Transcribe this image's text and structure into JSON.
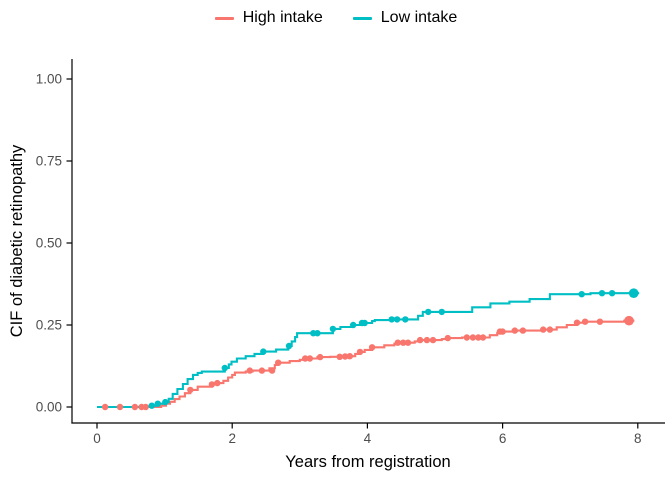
{
  "chart": {
    "background": "#ffffff",
    "axis_color": "#000000",
    "tick_label_color": "#4d4d4d"
  },
  "legend": {
    "items": [
      {
        "label": "High intake",
        "color": "#F8766D"
      },
      {
        "label": "Low intake",
        "color": "#00BFC4"
      }
    ]
  },
  "chart_data": {
    "type": "line",
    "subtype": "step-cumulative-incidence",
    "title": "",
    "xlabel": "Years from registration",
    "ylabel": "CIF of diabetic retinopathy",
    "xlim": [
      0,
      8.4
    ],
    "ylim": [
      0,
      1.04
    ],
    "grid": false,
    "legend_position": "top-center",
    "xticks": {
      "values": [
        0,
        2,
        4,
        6,
        8
      ],
      "labels": [
        "0",
        "2",
        "4",
        "6",
        "8"
      ]
    },
    "yticks": {
      "values": [
        0,
        0.25,
        0.5,
        0.75,
        1
      ],
      "labels": [
        "0.00",
        "0.25",
        "0.50",
        "0.75",
        "1.00"
      ]
    },
    "series": [
      {
        "name": "High intake",
        "color": "#F8766D",
        "steps": [
          [
            0,
            0
          ],
          [
            0.95,
            0.004
          ],
          [
            1.02,
            0.01
          ],
          [
            1.08,
            0.016
          ],
          [
            1.15,
            0.024
          ],
          [
            1.22,
            0.032
          ],
          [
            1.3,
            0.042
          ],
          [
            1.38,
            0.052
          ],
          [
            1.49,
            0.062
          ],
          [
            1.7,
            0.069
          ],
          [
            1.78,
            0.073
          ],
          [
            1.87,
            0.08
          ],
          [
            1.94,
            0.09
          ],
          [
            2.0,
            0.098
          ],
          [
            2.04,
            0.105
          ],
          [
            2.2,
            0.108
          ],
          [
            2.3,
            0.111
          ],
          [
            2.55,
            0.118
          ],
          [
            2.63,
            0.128
          ],
          [
            2.68,
            0.135
          ],
          [
            2.85,
            0.14
          ],
          [
            3.0,
            0.144
          ],
          [
            3.08,
            0.148
          ],
          [
            3.26,
            0.152
          ],
          [
            3.45,
            0.153
          ],
          [
            3.74,
            0.155
          ],
          [
            3.82,
            0.162
          ],
          [
            3.89,
            0.168
          ],
          [
            3.96,
            0.174
          ],
          [
            4.07,
            0.182
          ],
          [
            4.25,
            0.188
          ],
          [
            4.4,
            0.193
          ],
          [
            4.45,
            0.196
          ],
          [
            4.7,
            0.2
          ],
          [
            4.78,
            0.204
          ],
          [
            5.1,
            0.207
          ],
          [
            5.19,
            0.21
          ],
          [
            5.4,
            0.212
          ],
          [
            5.81,
            0.219
          ],
          [
            5.92,
            0.225
          ],
          [
            5.96,
            0.23
          ],
          [
            6.15,
            0.233
          ],
          [
            6.6,
            0.236
          ],
          [
            6.8,
            0.243
          ],
          [
            6.95,
            0.25
          ],
          [
            7.1,
            0.257
          ],
          [
            7.22,
            0.26
          ],
          [
            7.8,
            0.263
          ],
          [
            7.95,
            0.263
          ]
        ],
        "censor_marks": [
          [
            0.12,
            0
          ],
          [
            0.34,
            0
          ],
          [
            0.56,
            0
          ],
          [
            0.66,
            0
          ],
          [
            0.72,
            0
          ],
          [
            1.38,
            0.052
          ],
          [
            1.7,
            0.069
          ],
          [
            1.78,
            0.073
          ],
          [
            2.26,
            0.111
          ],
          [
            2.44,
            0.111
          ],
          [
            2.59,
            0.111
          ],
          [
            2.68,
            0.135
          ],
          [
            3.08,
            0.148
          ],
          [
            3.15,
            0.148
          ],
          [
            3.3,
            0.152
          ],
          [
            3.59,
            0.153
          ],
          [
            3.67,
            0.154
          ],
          [
            3.74,
            0.155
          ],
          [
            3.89,
            0.168
          ],
          [
            4.07,
            0.182
          ],
          [
            4.45,
            0.196
          ],
          [
            4.53,
            0.196
          ],
          [
            4.6,
            0.196
          ],
          [
            4.78,
            0.204
          ],
          [
            4.88,
            0.204
          ],
          [
            4.97,
            0.204
          ],
          [
            5.19,
            0.21
          ],
          [
            5.47,
            0.212
          ],
          [
            5.56,
            0.212
          ],
          [
            5.64,
            0.212
          ],
          [
            5.71,
            0.212
          ],
          [
            5.96,
            0.23
          ],
          [
            6.0,
            0.23
          ],
          [
            6.18,
            0.233
          ],
          [
            6.3,
            0.233
          ],
          [
            6.6,
            0.236
          ],
          [
            6.7,
            0.236
          ],
          [
            7.1,
            0.257
          ],
          [
            7.22,
            0.26
          ],
          [
            7.44,
            0.26
          ]
        ],
        "end_point": [
          7.87,
          0.263
        ]
      },
      {
        "name": "Low intake",
        "color": "#00BFC4",
        "steps": [
          [
            0,
            0
          ],
          [
            0.78,
            0.004
          ],
          [
            0.9,
            0.01
          ],
          [
            1.0,
            0.015
          ],
          [
            1.06,
            0.025
          ],
          [
            1.12,
            0.04
          ],
          [
            1.19,
            0.055
          ],
          [
            1.27,
            0.07
          ],
          [
            1.34,
            0.085
          ],
          [
            1.42,
            0.098
          ],
          [
            1.49,
            0.104
          ],
          [
            1.55,
            0.108
          ],
          [
            1.89,
            0.119
          ],
          [
            1.95,
            0.13
          ],
          [
            1.99,
            0.138
          ],
          [
            2.07,
            0.148
          ],
          [
            2.2,
            0.155
          ],
          [
            2.33,
            0.162
          ],
          [
            2.46,
            0.169
          ],
          [
            2.65,
            0.175
          ],
          [
            2.83,
            0.186
          ],
          [
            2.88,
            0.2
          ],
          [
            2.93,
            0.213
          ],
          [
            2.96,
            0.225
          ],
          [
            3.49,
            0.238
          ],
          [
            3.6,
            0.244
          ],
          [
            3.79,
            0.25
          ],
          [
            3.92,
            0.256
          ],
          [
            4.07,
            0.262
          ],
          [
            4.11,
            0.265
          ],
          [
            4.36,
            0.267
          ],
          [
            4.75,
            0.278
          ],
          [
            4.82,
            0.29
          ],
          [
            5.55,
            0.304
          ],
          [
            5.82,
            0.316
          ],
          [
            6.1,
            0.321
          ],
          [
            6.4,
            0.329
          ],
          [
            6.7,
            0.344
          ],
          [
            7.3,
            0.347
          ],
          [
            8.02,
            0.347
          ]
        ],
        "censor_marks": [
          [
            0.81,
            0.004
          ],
          [
            0.9,
            0.01
          ],
          [
            1.01,
            0.015
          ],
          [
            1.89,
            0.119
          ],
          [
            2.46,
            0.169
          ],
          [
            2.84,
            0.186
          ],
          [
            3.2,
            0.225
          ],
          [
            3.26,
            0.225
          ],
          [
            3.49,
            0.238
          ],
          [
            3.79,
            0.25
          ],
          [
            3.92,
            0.256
          ],
          [
            3.96,
            0.256
          ],
          [
            4.36,
            0.267
          ],
          [
            4.44,
            0.267
          ],
          [
            4.56,
            0.267
          ],
          [
            4.9,
            0.29
          ],
          [
            5.1,
            0.29
          ],
          [
            7.17,
            0.344
          ],
          [
            7.47,
            0.347
          ],
          [
            7.62,
            0.347
          ]
        ],
        "end_point": [
          7.94,
          0.347
        ]
      }
    ]
  }
}
